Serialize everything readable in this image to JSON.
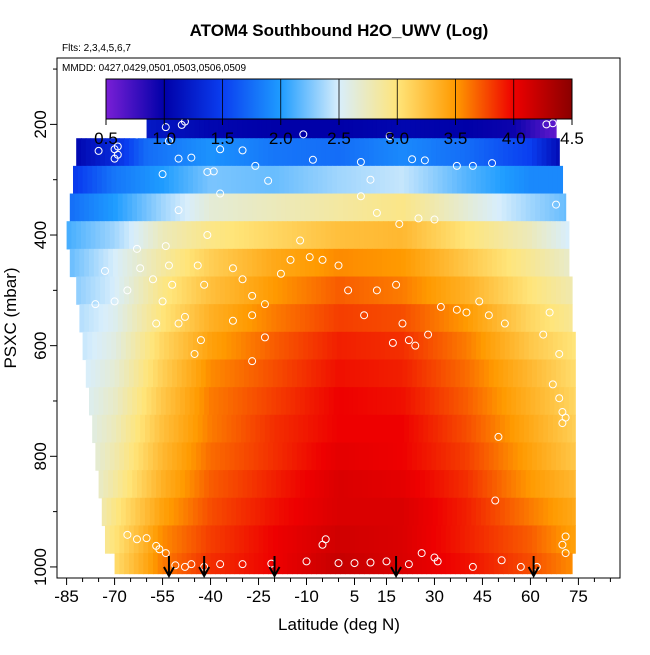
{
  "chart_data": {
    "type": "heatmap",
    "title": "ATOM4 Southbound H2O_UWV (Log)",
    "subtitle_flights": "Flts: 2,3,4,5,6,7",
    "subtitle_dates": "MMDD: 0427,0429,0501,0503,0506,0509",
    "xlabel": "Latitude (deg N)",
    "ylabel": "PSXC (mbar)",
    "xlim": [
      -88,
      88
    ],
    "ylim": [
      1020,
      80
    ],
    "x_ticks": [
      -85,
      -70,
      -55,
      -40,
      -25,
      -10,
      5,
      15,
      30,
      45,
      60,
      75
    ],
    "x_tick_labels": [
      "-85",
      "-70",
      "-55",
      "-40",
      "-25",
      "-10",
      "5",
      "15",
      "30",
      "45",
      "60",
      "75"
    ],
    "y_ticks": [
      200,
      400,
      600,
      800,
      1000
    ],
    "y_tick_labels": [
      "200",
      "400",
      "600",
      "800",
      "1000"
    ],
    "colorbar": {
      "min": 0.5,
      "max": 4.5,
      "ticks": [
        0.5,
        1.0,
        1.5,
        2.0,
        2.5,
        3.0,
        3.5,
        4.0,
        4.5
      ],
      "tick_labels": [
        "0.5",
        "1.0",
        "1.5",
        "2.0",
        "2.5",
        "3.0",
        "3.5",
        "4.0",
        "4.5"
      ],
      "colors": [
        "#7a1fd6",
        "#0000a8",
        "#0a3ef0",
        "#1e9cff",
        "#d8eefc",
        "#ffe57a",
        "#ff9a00",
        "#ee0000",
        "#8a0000"
      ]
    },
    "pressure_levels": [
      {
        "p": 200,
        "lat_min": -60,
        "lat_max": 68,
        "pts": [
          [
            -60,
            1.2
          ],
          [
            -40,
            1.05
          ],
          [
            -20,
            1.0
          ],
          [
            0,
            1.0
          ],
          [
            20,
            1.05
          ],
          [
            40,
            1.0
          ],
          [
            55,
            0.95
          ],
          [
            68,
            0.6
          ]
        ]
      },
      {
        "p": 250,
        "lat_min": -82,
        "lat_max": 69,
        "pts": [
          [
            -82,
            1.05
          ],
          [
            -70,
            1.35
          ],
          [
            -60,
            1.75
          ],
          [
            -40,
            1.95
          ],
          [
            -20,
            1.8
          ],
          [
            0,
            1.75
          ],
          [
            20,
            1.9
          ],
          [
            40,
            1.75
          ],
          [
            60,
            1.5
          ],
          [
            69,
            1.1
          ]
        ]
      },
      {
        "p": 300,
        "lat_min": -83,
        "lat_max": 70,
        "pts": [
          [
            -83,
            1.45
          ],
          [
            -70,
            1.8
          ],
          [
            -55,
            2.0
          ],
          [
            -40,
            2.25
          ],
          [
            -20,
            2.2
          ],
          [
            0,
            2.35
          ],
          [
            20,
            2.45
          ],
          [
            40,
            2.15
          ],
          [
            60,
            1.9
          ],
          [
            70,
            1.9
          ]
        ]
      },
      {
        "p": 350,
        "lat_min": -84,
        "lat_max": 71,
        "pts": [
          [
            -84,
            1.75
          ],
          [
            -70,
            2.0
          ],
          [
            -55,
            2.35
          ],
          [
            -40,
            2.65
          ],
          [
            -20,
            2.75
          ],
          [
            0,
            2.85
          ],
          [
            20,
            2.95
          ],
          [
            40,
            2.65
          ],
          [
            60,
            2.35
          ],
          [
            71,
            2.2
          ]
        ]
      },
      {
        "p": 400,
        "lat_min": -85,
        "lat_max": 72,
        "pts": [
          [
            -85,
            2.1
          ],
          [
            -70,
            2.35
          ],
          [
            -55,
            2.75
          ],
          [
            -40,
            2.95
          ],
          [
            -20,
            3.1
          ],
          [
            0,
            3.25
          ],
          [
            20,
            3.3
          ],
          [
            40,
            3.0
          ],
          [
            60,
            2.75
          ],
          [
            72,
            2.5
          ]
        ]
      },
      {
        "p": 450,
        "lat_min": -84,
        "lat_max": 72,
        "pts": [
          [
            -84,
            2.2
          ],
          [
            -70,
            2.5
          ],
          [
            -55,
            2.85
          ],
          [
            -40,
            3.15
          ],
          [
            -20,
            3.4
          ],
          [
            0,
            3.55
          ],
          [
            20,
            3.5
          ],
          [
            40,
            3.2
          ],
          [
            60,
            2.9
          ],
          [
            72,
            2.7
          ]
        ]
      },
      {
        "p": 500,
        "lat_min": -82,
        "lat_max": 73,
        "pts": [
          [
            -82,
            2.3
          ],
          [
            -70,
            2.5
          ],
          [
            -55,
            2.95
          ],
          [
            -40,
            3.25
          ],
          [
            -20,
            3.5
          ],
          [
            0,
            3.7
          ],
          [
            20,
            3.6
          ],
          [
            40,
            3.35
          ],
          [
            60,
            3.0
          ],
          [
            73,
            2.8
          ]
        ]
      },
      {
        "p": 550,
        "lat_min": -81,
        "lat_max": 73,
        "pts": [
          [
            -81,
            2.4
          ],
          [
            -70,
            2.55
          ],
          [
            -55,
            3.0
          ],
          [
            -40,
            3.35
          ],
          [
            -20,
            3.6
          ],
          [
            0,
            3.8
          ],
          [
            20,
            3.75
          ],
          [
            40,
            3.5
          ],
          [
            60,
            3.1
          ],
          [
            73,
            2.9
          ]
        ]
      },
      {
        "p": 600,
        "lat_min": -80,
        "lat_max": 74,
        "pts": [
          [
            -80,
            2.45
          ],
          [
            -70,
            2.6
          ],
          [
            -55,
            3.1
          ],
          [
            -40,
            3.45
          ],
          [
            -20,
            3.7
          ],
          [
            0,
            3.9
          ],
          [
            20,
            3.85
          ],
          [
            40,
            3.6
          ],
          [
            60,
            3.2
          ],
          [
            74,
            3.0
          ]
        ]
      },
      {
        "p": 650,
        "lat_min": -79,
        "lat_max": 74,
        "pts": [
          [
            -79,
            2.5
          ],
          [
            -70,
            2.65
          ],
          [
            -55,
            3.15
          ],
          [
            -40,
            3.55
          ],
          [
            -20,
            3.75
          ],
          [
            0,
            3.95
          ],
          [
            20,
            3.9
          ],
          [
            40,
            3.65
          ],
          [
            60,
            3.3
          ],
          [
            74,
            3.05
          ]
        ]
      },
      {
        "p": 700,
        "lat_min": -78,
        "lat_max": 74,
        "pts": [
          [
            -78,
            2.55
          ],
          [
            -70,
            2.7
          ],
          [
            -55,
            3.2
          ],
          [
            -40,
            3.6
          ],
          [
            -20,
            3.8
          ],
          [
            0,
            4.0
          ],
          [
            20,
            3.95
          ],
          [
            40,
            3.7
          ],
          [
            60,
            3.35
          ],
          [
            74,
            3.1
          ]
        ]
      },
      {
        "p": 750,
        "lat_min": -77,
        "lat_max": 74,
        "pts": [
          [
            -77,
            2.6
          ],
          [
            -70,
            2.75
          ],
          [
            -55,
            3.25
          ],
          [
            -40,
            3.6
          ],
          [
            -20,
            3.85
          ],
          [
            0,
            4.0
          ],
          [
            20,
            4.0
          ],
          [
            40,
            3.75
          ],
          [
            60,
            3.4
          ],
          [
            74,
            3.15
          ]
        ]
      },
      {
        "p": 800,
        "lat_min": -76,
        "lat_max": 74,
        "pts": [
          [
            -76,
            2.65
          ],
          [
            -70,
            2.8
          ],
          [
            -55,
            3.3
          ],
          [
            -40,
            3.65
          ],
          [
            -20,
            3.85
          ],
          [
            0,
            4.05
          ],
          [
            20,
            4.0
          ],
          [
            40,
            3.8
          ],
          [
            60,
            3.45
          ],
          [
            74,
            3.2
          ]
        ]
      },
      {
        "p": 850,
        "lat_min": -75,
        "lat_max": 74,
        "pts": [
          [
            -75,
            2.7
          ],
          [
            -70,
            2.85
          ],
          [
            -55,
            3.35
          ],
          [
            -40,
            3.7
          ],
          [
            -20,
            3.9
          ],
          [
            0,
            4.1
          ],
          [
            20,
            4.05
          ],
          [
            40,
            3.85
          ],
          [
            60,
            3.5
          ],
          [
            74,
            3.3
          ]
        ]
      },
      {
        "p": 900,
        "lat_min": -74,
        "lat_max": 74,
        "pts": [
          [
            -74,
            2.8
          ],
          [
            -70,
            2.95
          ],
          [
            -55,
            3.45
          ],
          [
            -40,
            3.75
          ],
          [
            -20,
            3.95
          ],
          [
            0,
            4.1
          ],
          [
            20,
            4.1
          ],
          [
            40,
            3.9
          ],
          [
            60,
            3.6
          ],
          [
            74,
            3.4
          ]
        ]
      },
      {
        "p": 950,
        "lat_min": -73,
        "lat_max": 74,
        "pts": [
          [
            -73,
            2.9
          ],
          [
            -70,
            3.0
          ],
          [
            -55,
            3.55
          ],
          [
            -40,
            3.8
          ],
          [
            -20,
            4.0
          ],
          [
            0,
            4.15
          ],
          [
            20,
            4.1
          ],
          [
            40,
            3.9
          ],
          [
            60,
            3.7
          ],
          [
            74,
            3.45
          ]
        ]
      },
      {
        "p": 1000,
        "lat_min": -70,
        "lat_max": 73,
        "pts": [
          [
            -70,
            3.05
          ],
          [
            -55,
            3.6
          ],
          [
            -40,
            3.85
          ],
          [
            -20,
            4.0
          ],
          [
            0,
            4.2
          ],
          [
            20,
            4.1
          ],
          [
            40,
            3.95
          ],
          [
            60,
            3.75
          ],
          [
            73,
            3.55
          ]
        ]
      }
    ],
    "sample_points": [
      [
        -54,
        205
      ],
      [
        -53,
        230
      ],
      [
        -49,
        201
      ],
      [
        -48,
        195
      ],
      [
        -63,
        218
      ],
      [
        -69,
        240
      ],
      [
        -70,
        245
      ],
      [
        -69,
        255
      ],
      [
        -70,
        262
      ],
      [
        -75,
        248
      ],
      [
        -50,
        262
      ],
      [
        -46,
        260
      ],
      [
        -41,
        286
      ],
      [
        -39,
        285
      ],
      [
        -37,
        245
      ],
      [
        -30,
        247
      ],
      [
        -26,
        275
      ],
      [
        -22,
        302
      ],
      [
        -11,
        218
      ],
      [
        -8,
        264
      ],
      [
        7,
        268
      ],
      [
        10,
        300
      ],
      [
        16,
        221
      ],
      [
        23,
        263
      ],
      [
        27,
        265
      ],
      [
        37,
        275
      ],
      [
        42,
        275
      ],
      [
        48,
        270
      ],
      [
        65,
        200
      ],
      [
        67,
        198
      ],
      [
        -55,
        290
      ],
      [
        -50,
        355
      ],
      [
        -37,
        325
      ],
      [
        -41,
        400
      ],
      [
        7,
        330
      ],
      [
        12,
        360
      ],
      [
        19,
        380
      ],
      [
        25,
        370
      ],
      [
        30,
        372
      ],
      [
        68,
        345
      ],
      [
        -63,
        425
      ],
      [
        -62,
        460
      ],
      [
        -54,
        420
      ],
      [
        -53,
        455
      ],
      [
        -58,
        480
      ],
      [
        -55,
        520
      ],
      [
        -57,
        560
      ],
      [
        -66,
        500
      ],
      [
        -70,
        520
      ],
      [
        -73,
        465
      ],
      [
        -76,
        525
      ],
      [
        -52,
        490
      ],
      [
        -44,
        455
      ],
      [
        -42,
        490
      ],
      [
        -33,
        460
      ],
      [
        -30,
        480
      ],
      [
        -27,
        510
      ],
      [
        -23,
        525
      ],
      [
        -18,
        470
      ],
      [
        -15,
        445
      ],
      [
        -9,
        440
      ],
      [
        -5,
        445
      ],
      [
        -12,
        410
      ],
      [
        0,
        455
      ],
      [
        3,
        500
      ],
      [
        8,
        545
      ],
      [
        12,
        500
      ],
      [
        18,
        490
      ],
      [
        20,
        560
      ],
      [
        17,
        595
      ],
      [
        22,
        590
      ],
      [
        24,
        600
      ],
      [
        28,
        580
      ],
      [
        32,
        530
      ],
      [
        37,
        535
      ],
      [
        40,
        540
      ],
      [
        44,
        520
      ],
      [
        47,
        545
      ],
      [
        52,
        560
      ],
      [
        64,
        580
      ],
      [
        66,
        540
      ],
      [
        69,
        615
      ],
      [
        -50,
        560
      ],
      [
        -45,
        615
      ],
      [
        -43,
        590
      ],
      [
        -33,
        555
      ],
      [
        -27,
        545
      ],
      [
        -23,
        585
      ],
      [
        -27,
        628
      ],
      [
        -48,
        548
      ],
      [
        50,
        765
      ],
      [
        49,
        880
      ],
      [
        67,
        670
      ],
      [
        69,
        695
      ],
      [
        70,
        720
      ],
      [
        71,
        730
      ],
      [
        70,
        740
      ],
      [
        -60,
        948
      ],
      [
        -66,
        942
      ],
      [
        -63,
        950
      ],
      [
        -57,
        962
      ],
      [
        -56,
        968
      ],
      [
        -54,
        975
      ],
      [
        -51,
        997
      ],
      [
        -48,
        1000
      ],
      [
        -46,
        995
      ],
      [
        -42,
        1000
      ],
      [
        -37,
        995
      ],
      [
        -30,
        995
      ],
      [
        -21,
        994
      ],
      [
        -10,
        990
      ],
      [
        -5,
        960
      ],
      [
        -4,
        950
      ],
      [
        0,
        993
      ],
      [
        5,
        993
      ],
      [
        10,
        992
      ],
      [
        15,
        990
      ],
      [
        22,
        995
      ],
      [
        26,
        975
      ],
      [
        30,
        983
      ],
      [
        31,
        990
      ],
      [
        42,
        1000
      ],
      [
        51,
        988
      ],
      [
        57,
        1000
      ],
      [
        62,
        1000
      ],
      [
        70,
        960
      ],
      [
        71,
        945
      ],
      [
        71,
        975
      ]
    ],
    "flight_markers": [
      -53,
      -42,
      -20,
      18,
      61
    ]
  }
}
